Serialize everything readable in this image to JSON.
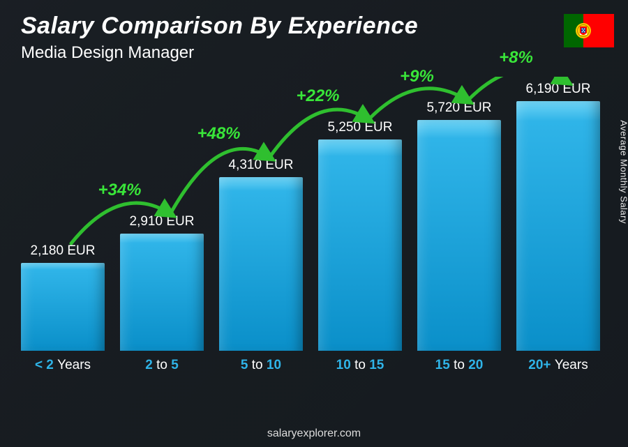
{
  "title": "Salary Comparison By Experience",
  "subtitle": "Media Design Manager",
  "side_label": "Average Monthly Salary",
  "footer": "salaryexplorer.com",
  "flag": {
    "name": "portugal-flag"
  },
  "chart": {
    "type": "bar",
    "currency": "EUR",
    "max_value": 6800,
    "bar_gradient_top": "#2fb4e8",
    "bar_gradient_bottom": "#0a8fc9",
    "bar_highlight": "#6fd4f6",
    "category_color": "#2fb4e8",
    "category_dim_color": "#ffffff",
    "value_label_color": "#ffffff",
    "increase_color": "#39e639",
    "arc_color": "#2fbf2f",
    "background_overlay": "rgba(20,25,30,0.85)",
    "title_fontsize": 34,
    "subtitle_fontsize": 24,
    "value_fontsize": 19,
    "category_fontsize": 19,
    "increase_fontsize": 24,
    "bars": [
      {
        "category_main": "< 2",
        "category_suffix": "Years",
        "value": 2180,
        "value_label": "2,180 EUR"
      },
      {
        "category_main": "2",
        "category_mid": "to",
        "category_end": "5",
        "value": 2910,
        "value_label": "2,910 EUR",
        "increase": "+34%"
      },
      {
        "category_main": "5",
        "category_mid": "to",
        "category_end": "10",
        "value": 4310,
        "value_label": "4,310 EUR",
        "increase": "+48%"
      },
      {
        "category_main": "10",
        "category_mid": "to",
        "category_end": "15",
        "value": 5250,
        "value_label": "5,250 EUR",
        "increase": "+22%"
      },
      {
        "category_main": "15",
        "category_mid": "to",
        "category_end": "20",
        "value": 5720,
        "value_label": "5,720 EUR",
        "increase": "+9%"
      },
      {
        "category_main": "20+",
        "category_suffix": "Years",
        "value": 6190,
        "value_label": "6,190 EUR",
        "increase": "+8%"
      }
    ]
  }
}
